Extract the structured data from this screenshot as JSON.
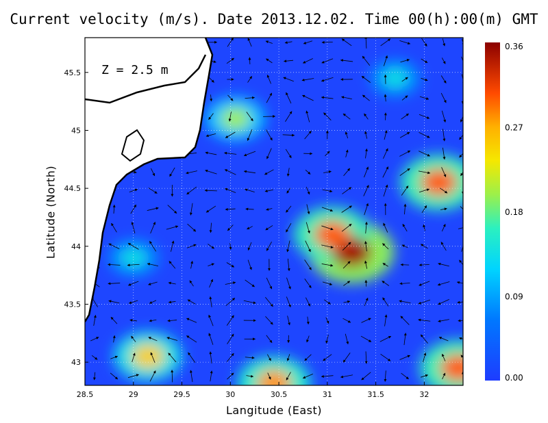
{
  "title": "Current velocity (m/s). Date 2013.12.02. Time 00(h):00(m) GMT",
  "depth_label": "Z = 2.5 m",
  "chart_data": {
    "type": "heatmap",
    "xlabel": "Langitude (East)",
    "ylabel": "Latitude (North)",
    "xlim": [
      28.5,
      32.4
    ],
    "ylim": [
      42.8,
      45.8
    ],
    "x_ticks": [
      "28.5",
      "29",
      "29.5",
      "30",
      "30.5",
      "31",
      "31.5",
      "32"
    ],
    "y_ticks": [
      "43",
      "43.5",
      "44",
      "44.5",
      "45",
      "45.5"
    ],
    "colorbar": {
      "min": 0.0,
      "max": 0.36,
      "labels": [
        "0.00",
        "0.09",
        "0.18",
        "0.27",
        "0.36"
      ]
    },
    "grid": true,
    "hotspots": [
      {
        "lon": 31.25,
        "lat": 43.95,
        "value": 0.35
      },
      {
        "lon": 31.05,
        "lat": 44.1,
        "value": 0.3
      },
      {
        "lon": 32.15,
        "lat": 44.55,
        "value": 0.3
      },
      {
        "lon": 30.45,
        "lat": 42.82,
        "value": 0.28
      },
      {
        "lon": 29.15,
        "lat": 43.05,
        "value": 0.25
      },
      {
        "lon": 32.35,
        "lat": 42.95,
        "value": 0.3
      },
      {
        "lon": 30.05,
        "lat": 45.1,
        "value": 0.2
      },
      {
        "lon": 31.7,
        "lat": 45.45,
        "value": 0.14
      },
      {
        "lon": 29.0,
        "lat": 43.9,
        "value": 0.14
      }
    ]
  }
}
